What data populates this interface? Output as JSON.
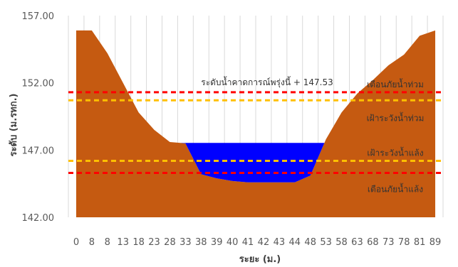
{
  "chart_data": {
    "type": "area",
    "title": "",
    "xlabel": "ระยะ (ม.)",
    "ylabel": "ระดับ (ม.รทก.)",
    "ylim": [
      142,
      157
    ],
    "yticks": [
      "142.00",
      "147.00",
      "152.00",
      "157.00"
    ],
    "yticks_values": [
      142,
      147,
      152,
      157
    ],
    "grid": "vertical",
    "x_categories": [
      "0",
      "8",
      "8",
      "13",
      "18",
      "23",
      "28",
      "33",
      "38",
      "39",
      "40",
      "41",
      "42",
      "43",
      "44",
      "48",
      "53",
      "58",
      "63",
      "68",
      "73",
      "78",
      "81",
      "89"
    ],
    "x_tick_labels": [
      "0",
      "8",
      "8",
      "13",
      "18",
      "23",
      "28",
      "33",
      "38",
      "39",
      "40",
      "41",
      "42",
      "43",
      "44",
      "48",
      "53",
      "58",
      "63",
      "68",
      "73",
      "78",
      "81",
      "89"
    ],
    "series": [
      {
        "values": [
          155.9,
          155.9,
          154.2,
          152.0,
          149.8,
          148.5,
          147.6,
          147.5,
          145.2,
          144.9,
          144.7,
          144.6,
          144.6,
          144.6,
          144.6,
          145.1,
          147.8,
          149.8,
          151.2,
          152.2,
          153.3,
          154.1,
          155.5,
          155.9
        ]
      },
      {
        "values": [
          147.53,
          147.53,
          147.53,
          147.53,
          147.53,
          147.53,
          147.53,
          147.53,
          147.53,
          147.53,
          147.53,
          147.53,
          147.53,
          147.53,
          147.53,
          147.53,
          147.53,
          147.53,
          147.53,
          147.53,
          147.53,
          147.53,
          147.53,
          147.53
        ]
      }
    ],
    "reference_lines": [
      {
        "value": 151.3,
        "color": "#ff0000",
        "label": "เตือนภัยน้ำท่วม"
      },
      {
        "value": 150.7,
        "color": "#ffc000",
        "label": "เฝ้าระวังน้ำท่วม"
      },
      {
        "value": 146.2,
        "color": "#ffc000",
        "label": "เฝ้าระวังน้ำแล้ง"
      },
      {
        "value": 145.3,
        "color": "#ff0000",
        "label": "เตือนภัยน้ำแล้ง"
      }
    ],
    "forecast_annotation": "ระดับน้ำคาดการณ์พรุ่งนี้ + 147.53",
    "colors": {
      "ground": "#c55a11",
      "water": "#0000ff",
      "grid": "#d9d9d9"
    }
  }
}
